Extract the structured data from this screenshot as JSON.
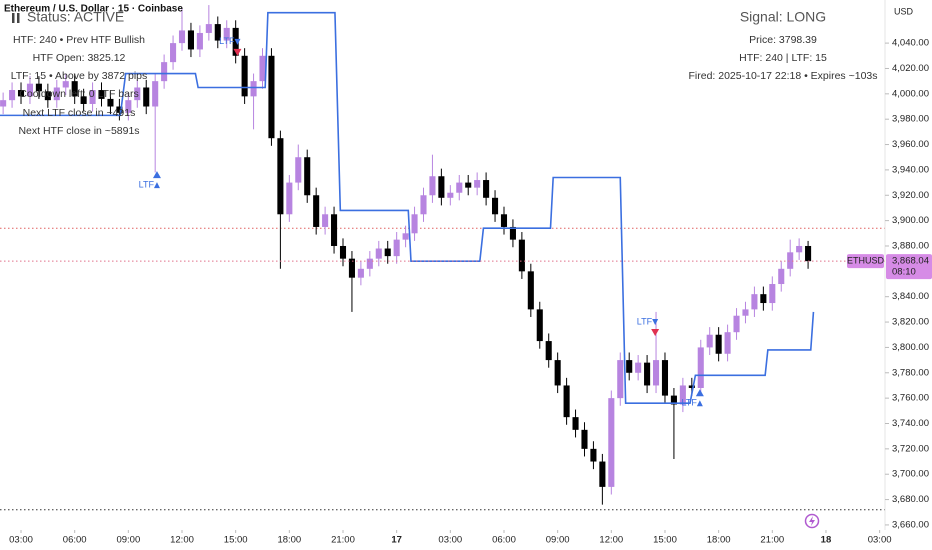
{
  "chart_data": {
    "type": "candlestick",
    "title": "Ethereum / U.S. Dollar · 15 · Coinbase",
    "y_axis_label": "USD",
    "xlim": [
      -0.35,
      98.6
    ],
    "ylim": [
      3656,
      4074
    ],
    "xticks": [
      {
        "value": 2,
        "label": "03:00"
      },
      {
        "value": 8,
        "label": "06:00"
      },
      {
        "value": 14,
        "label": "09:00"
      },
      {
        "value": 20,
        "label": "12:00"
      },
      {
        "value": 26,
        "label": "15:00"
      },
      {
        "value": 32,
        "label": "18:00"
      },
      {
        "value": 38,
        "label": "21:00"
      },
      {
        "value": 44,
        "label": "17"
      },
      {
        "value": 50,
        "label": "03:00"
      },
      {
        "value": 56,
        "label": "06:00"
      },
      {
        "value": 62,
        "label": "09:00"
      },
      {
        "value": 68,
        "label": "12:00"
      },
      {
        "value": 74,
        "label": "15:00"
      },
      {
        "value": 80,
        "label": "18:00"
      },
      {
        "value": 86,
        "label": "21:00"
      },
      {
        "value": 92,
        "label": "18"
      },
      {
        "value": 98,
        "label": "03:00"
      }
    ],
    "yticks": [
      {
        "value": 3660,
        "label": "3,660.00"
      },
      {
        "value": 3680,
        "label": "3,680.00"
      },
      {
        "value": 3700,
        "label": "3,700.00"
      },
      {
        "value": 3720,
        "label": "3,720.00"
      },
      {
        "value": 3740,
        "label": "3,740.00"
      },
      {
        "value": 3760,
        "label": "3,760.00"
      },
      {
        "value": 3780,
        "label": "3,780.00"
      },
      {
        "value": 3800,
        "label": "3,800.00"
      },
      {
        "value": 3820,
        "label": "3,820.00"
      },
      {
        "value": 3840,
        "label": "3,840.00"
      },
      {
        "value": 3880,
        "label": "3,880.00"
      },
      {
        "value": 3900,
        "label": "3,900.00"
      },
      {
        "value": 3920,
        "label": "3,920.00"
      },
      {
        "value": 3940,
        "label": "3,940.00"
      },
      {
        "value": 3960,
        "label": "3,960.00"
      },
      {
        "value": 3980,
        "label": "3,980.00"
      },
      {
        "value": 4000,
        "label": "4,000.00"
      },
      {
        "value": 4020,
        "label": "4,020.00"
      },
      {
        "value": 4040,
        "label": "4,040.00"
      }
    ],
    "grid": false,
    "series": [
      {
        "name": "ETHUSD",
        "type": "candlestick",
        "up_color": "#b784e0",
        "down_color": "#000000",
        "open": [
          3990,
          3995,
          4003,
          3998,
          4008,
          4002,
          3995,
          4005,
          4010,
          3998,
          3992,
          4003,
          3996,
          3990,
          3985,
          3995,
          4005,
          3990,
          4010,
          4025,
          4040,
          4050,
          4035,
          4048,
          4055,
          4042,
          4052,
          4030,
          3998,
          4010,
          4030,
          3965,
          3905,
          3930,
          3950,
          3920,
          3895,
          3905,
          3880,
          3870,
          3855,
          3862,
          3870,
          3878,
          3872,
          3885,
          3890,
          3905,
          3920,
          3935,
          3918,
          3922,
          3930,
          3926,
          3932,
          3918,
          3905,
          3895,
          3885,
          3860,
          3830,
          3805,
          3790,
          3770,
          3745,
          3735,
          3720,
          3710,
          3690,
          3760,
          3790,
          3780,
          3788,
          3770,
          3790,
          3762,
          3755,
          3770,
          3768,
          3800,
          3810,
          3795,
          3812,
          3825,
          3830,
          3842,
          3835,
          3850,
          3862,
          3875,
          3880
        ],
        "high": [
          4001,
          4009,
          4009,
          4014,
          4014,
          4008,
          4011,
          4016,
          4016,
          4004,
          4009,
          4009,
          4002,
          3996,
          4001,
          4011,
          4011,
          4016,
          4031,
          4046,
          4068,
          4056,
          4054,
          4070,
          4061,
          4058,
          4058,
          4036,
          4016,
          4036,
          4036,
          3971,
          3936,
          3960,
          3956,
          3926,
          3911,
          3911,
          3886,
          3876,
          3868,
          3876,
          3884,
          3884,
          3891,
          3896,
          3911,
          3926,
          3952,
          3941,
          3928,
          3936,
          3936,
          3938,
          3938,
          3924,
          3911,
          3901,
          3891,
          3866,
          3836,
          3811,
          3796,
          3776,
          3751,
          3741,
          3726,
          3716,
          3766,
          3796,
          3796,
          3794,
          3794,
          3828,
          3796,
          3768,
          3776,
          3776,
          3806,
          3816,
          3816,
          3818,
          3831,
          3836,
          3848,
          3848,
          3856,
          3868,
          3885,
          3886,
          3884
        ],
        "low": [
          3984,
          3989,
          3992,
          3992,
          3996,
          3989,
          3989,
          3999,
          3992,
          3986,
          3986,
          3990,
          3984,
          3979,
          3979,
          3989,
          3984,
          3938,
          4004,
          4019,
          4034,
          4029,
          4029,
          4042,
          4036,
          4036,
          4024,
          3992,
          3972,
          4004,
          3959,
          3862,
          3899,
          3924,
          3914,
          3889,
          3889,
          3874,
          3864,
          3828,
          3849,
          3856,
          3864,
          3866,
          3866,
          3879,
          3884,
          3899,
          3914,
          3912,
          3912,
          3916,
          3920,
          3920,
          3912,
          3899,
          3889,
          3879,
          3854,
          3824,
          3799,
          3784,
          3764,
          3739,
          3729,
          3714,
          3704,
          3676,
          3684,
          3754,
          3774,
          3774,
          3764,
          3764,
          3756,
          3712,
          3749,
          3762,
          3762,
          3794,
          3789,
          3789,
          3806,
          3819,
          3824,
          3829,
          3829,
          3844,
          3856,
          3869,
          3862
        ],
        "close": [
          3995,
          4003,
          3998,
          4008,
          4002,
          3995,
          4005,
          4010,
          3998,
          3992,
          4003,
          3996,
          3990,
          3985,
          3995,
          4005,
          3990,
          4010,
          4025,
          4040,
          4050,
          4035,
          4048,
          4055,
          4042,
          4052,
          4030,
          3998,
          4010,
          4030,
          3965,
          3905,
          3930,
          3950,
          3920,
          3895,
          3905,
          3880,
          3870,
          3855,
          3862,
          3870,
          3878,
          3872,
          3885,
          3890,
          3905,
          3920,
          3935,
          3918,
          3922,
          3930,
          3926,
          3932,
          3918,
          3905,
          3895,
          3885,
          3860,
          3830,
          3805,
          3790,
          3770,
          3745,
          3735,
          3720,
          3710,
          3690,
          3760,
          3790,
          3780,
          3788,
          3770,
          3790,
          3762,
          3755,
          3770,
          3768,
          3800,
          3810,
          3795,
          3812,
          3825,
          3830,
          3842,
          3835,
          3850,
          3862,
          3875,
          3880,
          3868.04
        ]
      },
      {
        "type": "line",
        "color": "#3b6fe0",
        "x": [
          -0.5,
          13.1,
          13.7,
          21.5,
          21.8,
          29.3,
          29.6,
          37.1,
          37.7,
          45.3,
          45.6,
          53.3,
          53.7,
          61.2,
          61.5,
          69,
          69.6,
          76.8,
          77.4,
          85.2,
          85.5,
          90.3,
          90.6
        ],
        "values": [
          3983,
          3983,
          4016,
          4016,
          4005,
          4005,
          4064,
          4064,
          3908,
          3908,
          3868,
          3868,
          3894,
          3894,
          3934,
          3934,
          3756,
          3756,
          3778,
          3778,
          3798,
          3798,
          3828
        ]
      }
    ],
    "levels": [
      {
        "value": 3894,
        "color": "#e06060"
      },
      {
        "value": 3672,
        "color": "#333333"
      }
    ],
    "price_line_color": "#e0708a",
    "price_box_color": "#d68be6",
    "last_price_label": "3,868.04",
    "countdown": "08:10",
    "markers": [
      {
        "label": "LTF",
        "x": 17.2,
        "y": 3928,
        "direction": "up",
        "color": "#3b6fe0"
      },
      {
        "label": "LTF",
        "x": 26.2,
        "y": 4041,
        "direction": "down",
        "color": "#3b6fe0",
        "arrow_color": "#e03050"
      },
      {
        "label": "LTF",
        "x": 72.9,
        "y": 3820,
        "direction": "down",
        "color": "#3b6fe0",
        "arrow_color": "#e03050"
      },
      {
        "label": "LTF",
        "x": 77.9,
        "y": 3756,
        "direction": "up",
        "color": "#3b6fe0"
      }
    ],
    "overlays": {
      "left": [
        "Status: ACTIVE",
        "HTF: 240  •  Prev HTF Bullish",
        "HTF Open: 3825.12",
        "LTF: 15  •  Above by 3872 pips",
        "Cooldown left: 0 LTF bars",
        "Next LTF close in ~491s",
        "Next HTF close in ~5891s"
      ],
      "right": [
        "Signal: LONG",
        "Price: 3798.39",
        "HTF: 240 | LTF: 15",
        "Fired: 2025-10-17 22:18 • Expires ~103s"
      ]
    }
  }
}
